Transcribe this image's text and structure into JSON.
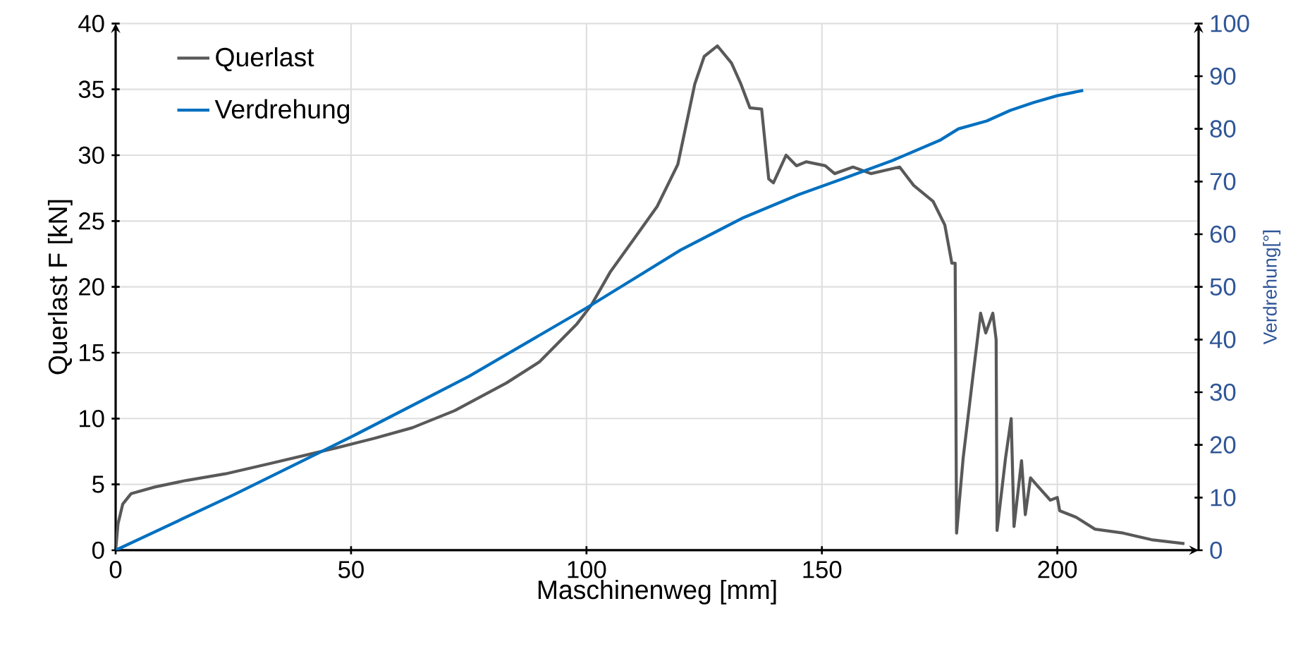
{
  "chart_data": {
    "type": "line",
    "xlabel": "Maschinenweg [mm]",
    "ylabel": "Querlast F [kN]",
    "y2label": "Verdrehung[°]",
    "xlim": [
      0,
      230
    ],
    "xticks": [
      0,
      50,
      100,
      150,
      200
    ],
    "ylim": [
      0,
      40
    ],
    "yticks": [
      0,
      5,
      10,
      15,
      20,
      25,
      30,
      35,
      40
    ],
    "y2lim": [
      0,
      100
    ],
    "y2ticks": [
      0,
      10,
      20,
      30,
      40,
      50,
      60,
      70,
      80,
      90,
      100
    ],
    "grid": true,
    "legend": "top left",
    "marker": "none",
    "line_style": "solid",
    "series": [
      {
        "name": "Querlast",
        "color": "#595959",
        "x": [
          0,
          0.5,
          1.5,
          3.3,
          8.3,
          15,
          23.3,
          33,
          47.2,
          55,
          63,
          72,
          83,
          90,
          98,
          101,
          105,
          110,
          115,
          119.4,
          123,
          125,
          127.8,
          130.8,
          132.8,
          134.7,
          137.2,
          138.7,
          139.7,
          142.4,
          144.6,
          146.7,
          150.7,
          152.7,
          156.6,
          160.4,
          166.5,
          169.5,
          173.6,
          176.1,
          177.6,
          178.3,
          178.6,
          180,
          182,
          183.7,
          184.8,
          186.3,
          187,
          187.2,
          189,
          190.2,
          190.8,
          192.4,
          193.2,
          194.3,
          196,
          198.5,
          200,
          200.5,
          204,
          208,
          214,
          220,
          227
        ],
        "values": [
          0,
          2,
          3.5,
          4.3,
          4.8,
          5.3,
          5.8,
          6.6,
          7.8,
          8.5,
          9.3,
          10.6,
          12.7,
          14.3,
          17.2,
          18.6,
          21.1,
          23.6,
          26.1,
          29.3,
          35.4,
          37.5,
          38.3,
          37,
          35.4,
          33.6,
          33.5,
          28.2,
          27.9,
          30,
          29.2,
          29.5,
          29.2,
          28.6,
          29.1,
          28.6,
          29.1,
          27.7,
          26.5,
          24.7,
          21.8,
          21.8,
          1.3,
          7,
          13,
          18,
          16.5,
          18,
          16,
          1.5,
          7,
          10,
          1.8,
          6.8,
          2.7,
          5.5,
          4.8,
          3.8,
          4,
          3,
          2.5,
          1.6,
          1.3,
          0.8,
          0.5
        ]
      },
      {
        "name": "Verdrehung",
        "color": "#0070c0",
        "axis": "y2",
        "x": [
          0,
          25,
          50,
          75,
          100,
          110,
          120,
          133,
          145,
          155,
          165,
          175,
          179,
          185,
          190,
          195,
          200,
          205.5
        ],
        "values": [
          0,
          10.5,
          21.5,
          33,
          46,
          51.5,
          57,
          63,
          67.5,
          70.7,
          74,
          77.8,
          80,
          81.5,
          83.5,
          85,
          86.3,
          87.3
        ]
      }
    ]
  }
}
